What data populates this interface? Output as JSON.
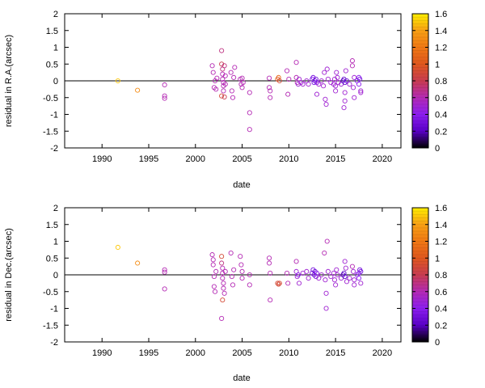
{
  "chart_data": [
    {
      "type": "scatter",
      "xlabel": "date",
      "ylabel": "residual in R.A.(arcsec)",
      "xlim": [
        1986,
        2022
      ],
      "ylim": [
        -2,
        2
      ],
      "x_ticks": [
        "1990",
        "1995",
        "2000",
        "2005",
        "2010",
        "2015",
        "2020"
      ],
      "y_ticks": [
        "-2",
        "-1.5",
        "-1",
        "-0.5",
        "0",
        "0.5",
        "1",
        "1.5",
        "2"
      ],
      "reference_line_y": 0,
      "colorbar": {
        "range": [
          0,
          1.6
        ],
        "ticks": [
          "0",
          "0.2",
          "0.4",
          "0.6",
          "0.8",
          "1",
          "1.2",
          "1.4",
          "1.6"
        ],
        "colors": [
          "#000000",
          "#5a00c8",
          "#8c1ef0",
          "#b42ab4",
          "#c83c50",
          "#e0581e",
          "#f07814",
          "#f8a014",
          "#ffee00"
        ]
      },
      "points": [
        {
          "x": 1991.7,
          "y": 0.0,
          "c": 1.5
        },
        {
          "x": 1993.8,
          "y": -0.28,
          "c": 1.3
        },
        {
          "x": 1996.7,
          "y": -0.12,
          "c": 0.6
        },
        {
          "x": 1996.7,
          "y": -0.45,
          "c": 0.6
        },
        {
          "x": 1996.7,
          "y": -0.52,
          "c": 0.6
        },
        {
          "x": 2001.8,
          "y": 0.45,
          "c": 0.6
        },
        {
          "x": 2001.9,
          "y": 0.25,
          "c": 0.6
        },
        {
          "x": 2002.0,
          "y": -0.2,
          "c": 0.6
        },
        {
          "x": 2002.1,
          "y": 0.0,
          "c": 0.6
        },
        {
          "x": 2002.2,
          "y": -0.25,
          "c": 0.6
        },
        {
          "x": 2002.3,
          "y": 0.08,
          "c": 0.6
        },
        {
          "x": 2002.8,
          "y": 0.9,
          "c": 0.7
        },
        {
          "x": 2002.8,
          "y": 0.5,
          "c": 0.8
        },
        {
          "x": 2002.9,
          "y": 0.35,
          "c": 0.7
        },
        {
          "x": 2002.9,
          "y": 0.2,
          "c": 0.6
        },
        {
          "x": 2002.9,
          "y": 0.05,
          "c": 0.6
        },
        {
          "x": 2003.0,
          "y": -0.05,
          "c": 0.6
        },
        {
          "x": 2003.0,
          "y": -0.15,
          "c": 0.6
        },
        {
          "x": 2003.0,
          "y": -0.3,
          "c": 0.6
        },
        {
          "x": 2002.8,
          "y": -0.45,
          "c": 0.9
        },
        {
          "x": 2003.1,
          "y": -0.48,
          "c": 0.8
        },
        {
          "x": 2003.1,
          "y": 0.45,
          "c": 0.7
        },
        {
          "x": 2003.2,
          "y": 0.15,
          "c": 0.6
        },
        {
          "x": 2003.2,
          "y": -0.1,
          "c": 0.6
        },
        {
          "x": 2003.8,
          "y": 0.25,
          "c": 0.6
        },
        {
          "x": 2003.9,
          "y": -0.3,
          "c": 0.6
        },
        {
          "x": 2004.0,
          "y": -0.5,
          "c": 0.6
        },
        {
          "x": 2004.1,
          "y": 0.1,
          "c": 0.6
        },
        {
          "x": 2004.2,
          "y": 0.4,
          "c": 0.6
        },
        {
          "x": 2004.8,
          "y": 0.05,
          "c": 0.6
        },
        {
          "x": 2004.9,
          "y": -0.1,
          "c": 0.6
        },
        {
          "x": 2005.0,
          "y": 0.08,
          "c": 0.6
        },
        {
          "x": 2005.0,
          "y": -0.2,
          "c": 0.6
        },
        {
          "x": 2005.1,
          "y": -0.05,
          "c": 0.6
        },
        {
          "x": 2005.8,
          "y": -0.35,
          "c": 0.6
        },
        {
          "x": 2005.8,
          "y": -0.95,
          "c": 0.6
        },
        {
          "x": 2005.8,
          "y": -1.45,
          "c": 0.6
        },
        {
          "x": 2007.9,
          "y": 0.08,
          "c": 0.6
        },
        {
          "x": 2007.9,
          "y": -0.2,
          "c": 0.6
        },
        {
          "x": 2008.0,
          "y": -0.3,
          "c": 0.6
        },
        {
          "x": 2008.0,
          "y": -0.5,
          "c": 0.6
        },
        {
          "x": 2008.8,
          "y": 0.05,
          "c": 1.0
        },
        {
          "x": 2008.9,
          "y": 0.1,
          "c": 1.1
        },
        {
          "x": 2009.0,
          "y": 0.0,
          "c": 0.9
        },
        {
          "x": 2009.8,
          "y": 0.3,
          "c": 0.6
        },
        {
          "x": 2009.9,
          "y": -0.4,
          "c": 0.6
        },
        {
          "x": 2010.0,
          "y": 0.05,
          "c": 0.6
        },
        {
          "x": 2010.8,
          "y": 0.55,
          "c": 0.6
        },
        {
          "x": 2010.8,
          "y": 0.1,
          "c": 0.6
        },
        {
          "x": 2010.9,
          "y": -0.05,
          "c": 0.6
        },
        {
          "x": 2011.0,
          "y": -0.1,
          "c": 0.5
        },
        {
          "x": 2011.1,
          "y": 0.05,
          "c": 0.5
        },
        {
          "x": 2011.3,
          "y": -0.05,
          "c": 0.5
        },
        {
          "x": 2011.5,
          "y": -0.1,
          "c": 0.5
        },
        {
          "x": 2011.9,
          "y": 0.0,
          "c": 0.5
        },
        {
          "x": 2012.1,
          "y": -0.1,
          "c": 0.5
        },
        {
          "x": 2012.5,
          "y": 0.05,
          "c": 0.4
        },
        {
          "x": 2012.6,
          "y": 0.1,
          "c": 0.3
        },
        {
          "x": 2012.7,
          "y": -0.05,
          "c": 0.3
        },
        {
          "x": 2012.8,
          "y": 0.0,
          "c": 0.3
        },
        {
          "x": 2012.9,
          "y": 0.05,
          "c": 0.3
        },
        {
          "x": 2013.0,
          "y": -0.05,
          "c": 0.4
        },
        {
          "x": 2013.0,
          "y": -0.4,
          "c": 0.5
        },
        {
          "x": 2013.2,
          "y": -0.1,
          "c": 0.5
        },
        {
          "x": 2013.5,
          "y": 0.0,
          "c": 0.5
        },
        {
          "x": 2013.7,
          "y": -0.15,
          "c": 0.5
        },
        {
          "x": 2013.8,
          "y": 0.25,
          "c": 0.5
        },
        {
          "x": 2013.9,
          "y": -0.55,
          "c": 0.5
        },
        {
          "x": 2014.0,
          "y": -0.7,
          "c": 0.5
        },
        {
          "x": 2014.1,
          "y": 0.35,
          "c": 0.5
        },
        {
          "x": 2014.2,
          "y": 0.05,
          "c": 0.5
        },
        {
          "x": 2014.5,
          "y": -0.05,
          "c": 0.5
        },
        {
          "x": 2014.8,
          "y": -0.1,
          "c": 0.5
        },
        {
          "x": 2014.9,
          "y": 0.05,
          "c": 0.5
        },
        {
          "x": 2015.0,
          "y": -0.15,
          "c": 0.5
        },
        {
          "x": 2015.0,
          "y": -0.3,
          "c": 0.5
        },
        {
          "x": 2015.1,
          "y": 0.25,
          "c": 0.5
        },
        {
          "x": 2015.2,
          "y": 0.1,
          "c": 0.5
        },
        {
          "x": 2015.3,
          "y": -0.05,
          "c": 0.5
        },
        {
          "x": 2015.6,
          "y": -0.1,
          "c": 0.5
        },
        {
          "x": 2015.8,
          "y": 0.0,
          "c": 0.2
        },
        {
          "x": 2015.9,
          "y": 0.05,
          "c": 0.2
        },
        {
          "x": 2016.0,
          "y": -0.05,
          "c": 0.2
        },
        {
          "x": 2016.0,
          "y": -0.35,
          "c": 0.5
        },
        {
          "x": 2016.0,
          "y": -0.6,
          "c": 0.5
        },
        {
          "x": 2015.9,
          "y": -0.8,
          "c": 0.5
        },
        {
          "x": 2016.1,
          "y": 0.3,
          "c": 0.5
        },
        {
          "x": 2016.2,
          "y": 0.0,
          "c": 0.3
        },
        {
          "x": 2016.5,
          "y": -0.1,
          "c": 0.5
        },
        {
          "x": 2016.8,
          "y": 0.6,
          "c": 0.6
        },
        {
          "x": 2016.8,
          "y": 0.45,
          "c": 0.6
        },
        {
          "x": 2016.9,
          "y": -0.2,
          "c": 0.5
        },
        {
          "x": 2017.0,
          "y": -0.5,
          "c": 0.5
        },
        {
          "x": 2017.0,
          "y": 0.1,
          "c": 0.5
        },
        {
          "x": 2017.3,
          "y": 0.0,
          "c": 0.4
        },
        {
          "x": 2017.5,
          "y": 0.1,
          "c": 0.4
        },
        {
          "x": 2017.5,
          "y": -0.1,
          "c": 0.4
        },
        {
          "x": 2017.6,
          "y": 0.05,
          "c": 0.3
        },
        {
          "x": 2017.7,
          "y": -0.3,
          "c": 0.5
        },
        {
          "x": 2017.7,
          "y": -0.35,
          "c": 0.5
        }
      ]
    },
    {
      "type": "scatter",
      "xlabel": "date",
      "ylabel": "residual in Dec.(arcsec)",
      "xlim": [
        1986,
        2022
      ],
      "ylim": [
        -2,
        2
      ],
      "x_ticks": [
        "1990",
        "1995",
        "2000",
        "2005",
        "2010",
        "2015",
        "2020"
      ],
      "y_ticks": [
        "-2",
        "-1.5",
        "-1",
        "-0.5",
        "0",
        "0.5",
        "1",
        "1.5",
        "2"
      ],
      "reference_line_y": 0,
      "colorbar": {
        "range": [
          0,
          1.6
        ],
        "ticks": [
          "0",
          "0.2",
          "0.4",
          "0.6",
          "0.8",
          "1",
          "1.2",
          "1.4",
          "1.6"
        ],
        "colors": [
          "#000000",
          "#5a00c8",
          "#8c1ef0",
          "#b42ab4",
          "#c83c50",
          "#e0581e",
          "#f07814",
          "#f8a014",
          "#ffee00"
        ]
      },
      "points": [
        {
          "x": 1991.7,
          "y": 0.82,
          "c": 1.5
        },
        {
          "x": 1993.8,
          "y": 0.35,
          "c": 1.3
        },
        {
          "x": 1996.7,
          "y": 0.15,
          "c": 0.6
        },
        {
          "x": 1996.7,
          "y": 0.08,
          "c": 0.6
        },
        {
          "x": 1996.7,
          "y": -0.42,
          "c": 0.6
        },
        {
          "x": 2001.8,
          "y": 0.6,
          "c": 0.6
        },
        {
          "x": 2001.9,
          "y": 0.3,
          "c": 0.6
        },
        {
          "x": 2001.9,
          "y": 0.45,
          "c": 0.6
        },
        {
          "x": 2002.0,
          "y": -0.05,
          "c": 0.6
        },
        {
          "x": 2002.0,
          "y": -0.35,
          "c": 0.6
        },
        {
          "x": 2002.1,
          "y": -0.5,
          "c": 0.6
        },
        {
          "x": 2002.2,
          "y": 0.1,
          "c": 0.6
        },
        {
          "x": 2002.8,
          "y": 0.55,
          "c": 0.9
        },
        {
          "x": 2002.8,
          "y": 0.35,
          "c": 0.7
        },
        {
          "x": 2002.9,
          "y": 0.2,
          "c": 0.6
        },
        {
          "x": 2002.9,
          "y": 0.05,
          "c": 0.6
        },
        {
          "x": 2002.9,
          "y": -0.1,
          "c": 0.6
        },
        {
          "x": 2003.0,
          "y": -0.25,
          "c": 0.6
        },
        {
          "x": 2003.0,
          "y": -0.4,
          "c": 0.6
        },
        {
          "x": 2002.9,
          "y": -0.75,
          "c": 0.9
        },
        {
          "x": 2002.8,
          "y": -1.3,
          "c": 0.6
        },
        {
          "x": 2003.1,
          "y": -0.55,
          "c": 0.6
        },
        {
          "x": 2003.2,
          "y": 0.1,
          "c": 0.6
        },
        {
          "x": 2003.8,
          "y": 0.65,
          "c": 0.6
        },
        {
          "x": 2003.9,
          "y": -0.05,
          "c": 0.6
        },
        {
          "x": 2004.0,
          "y": -0.3,
          "c": 0.6
        },
        {
          "x": 2004.1,
          "y": 0.15,
          "c": 0.6
        },
        {
          "x": 2004.8,
          "y": 0.55,
          "c": 0.6
        },
        {
          "x": 2004.9,
          "y": 0.3,
          "c": 0.6
        },
        {
          "x": 2005.0,
          "y": 0.1,
          "c": 0.6
        },
        {
          "x": 2005.0,
          "y": -0.1,
          "c": 0.6
        },
        {
          "x": 2005.8,
          "y": 0.0,
          "c": 0.6
        },
        {
          "x": 2005.8,
          "y": -0.3,
          "c": 0.6
        },
        {
          "x": 2007.9,
          "y": 0.5,
          "c": 0.6
        },
        {
          "x": 2007.9,
          "y": 0.35,
          "c": 0.6
        },
        {
          "x": 2008.0,
          "y": 0.05,
          "c": 0.6
        },
        {
          "x": 2008.0,
          "y": -0.75,
          "c": 0.6
        },
        {
          "x": 2008.8,
          "y": -0.25,
          "c": 0.9
        },
        {
          "x": 2008.9,
          "y": -0.28,
          "c": 0.9
        },
        {
          "x": 2009.0,
          "y": -0.25,
          "c": 0.9
        },
        {
          "x": 2009.8,
          "y": 0.05,
          "c": 0.6
        },
        {
          "x": 2009.9,
          "y": -0.25,
          "c": 0.6
        },
        {
          "x": 2010.8,
          "y": 0.4,
          "c": 0.6
        },
        {
          "x": 2010.8,
          "y": 0.1,
          "c": 0.5
        },
        {
          "x": 2010.9,
          "y": -0.05,
          "c": 0.5
        },
        {
          "x": 2011.0,
          "y": 0.0,
          "c": 0.4
        },
        {
          "x": 2011.1,
          "y": -0.25,
          "c": 0.5
        },
        {
          "x": 2011.5,
          "y": 0.05,
          "c": 0.5
        },
        {
          "x": 2011.9,
          "y": 0.1,
          "c": 0.5
        },
        {
          "x": 2012.1,
          "y": -0.1,
          "c": 0.5
        },
        {
          "x": 2012.5,
          "y": 0.05,
          "c": 0.3
        },
        {
          "x": 2012.6,
          "y": 0.15,
          "c": 0.3
        },
        {
          "x": 2012.7,
          "y": 0.0,
          "c": 0.3
        },
        {
          "x": 2012.8,
          "y": 0.1,
          "c": 0.3
        },
        {
          "x": 2012.9,
          "y": -0.05,
          "c": 0.3
        },
        {
          "x": 2013.0,
          "y": 0.05,
          "c": 0.4
        },
        {
          "x": 2013.2,
          "y": -0.1,
          "c": 0.5
        },
        {
          "x": 2013.5,
          "y": 0.0,
          "c": 0.5
        },
        {
          "x": 2013.8,
          "y": 0.65,
          "c": 0.6
        },
        {
          "x": 2013.9,
          "y": -0.15,
          "c": 0.5
        },
        {
          "x": 2014.0,
          "y": -0.55,
          "c": 0.5
        },
        {
          "x": 2014.0,
          "y": -1.0,
          "c": 0.5
        },
        {
          "x": 2014.1,
          "y": 1.0,
          "c": 0.6
        },
        {
          "x": 2014.2,
          "y": 0.1,
          "c": 0.5
        },
        {
          "x": 2014.5,
          "y": -0.05,
          "c": 0.5
        },
        {
          "x": 2014.8,
          "y": 0.05,
          "c": 0.5
        },
        {
          "x": 2014.9,
          "y": -0.15,
          "c": 0.5
        },
        {
          "x": 2015.0,
          "y": -0.3,
          "c": 0.5
        },
        {
          "x": 2015.1,
          "y": 0.15,
          "c": 0.5
        },
        {
          "x": 2015.2,
          "y": 0.0,
          "c": 0.5
        },
        {
          "x": 2015.6,
          "y": -0.1,
          "c": 0.5
        },
        {
          "x": 2015.8,
          "y": 0.0,
          "c": 0.2
        },
        {
          "x": 2015.9,
          "y": 0.05,
          "c": 0.2
        },
        {
          "x": 2016.0,
          "y": -0.05,
          "c": 0.2
        },
        {
          "x": 2016.0,
          "y": 0.4,
          "c": 0.5
        },
        {
          "x": 2016.1,
          "y": 0.2,
          "c": 0.5
        },
        {
          "x": 2016.2,
          "y": -0.2,
          "c": 0.5
        },
        {
          "x": 2016.5,
          "y": -0.1,
          "c": 0.5
        },
        {
          "x": 2016.8,
          "y": 0.25,
          "c": 0.6
        },
        {
          "x": 2016.9,
          "y": 0.1,
          "c": 0.5
        },
        {
          "x": 2017.0,
          "y": -0.15,
          "c": 0.5
        },
        {
          "x": 2017.0,
          "y": -0.3,
          "c": 0.5
        },
        {
          "x": 2017.3,
          "y": 0.0,
          "c": 0.4
        },
        {
          "x": 2017.5,
          "y": 0.05,
          "c": 0.4
        },
        {
          "x": 2017.5,
          "y": -0.1,
          "c": 0.4
        },
        {
          "x": 2017.6,
          "y": 0.15,
          "c": 0.3
        },
        {
          "x": 2017.7,
          "y": -0.25,
          "c": 0.5
        },
        {
          "x": 2017.7,
          "y": 0.1,
          "c": 0.3
        }
      ]
    }
  ]
}
